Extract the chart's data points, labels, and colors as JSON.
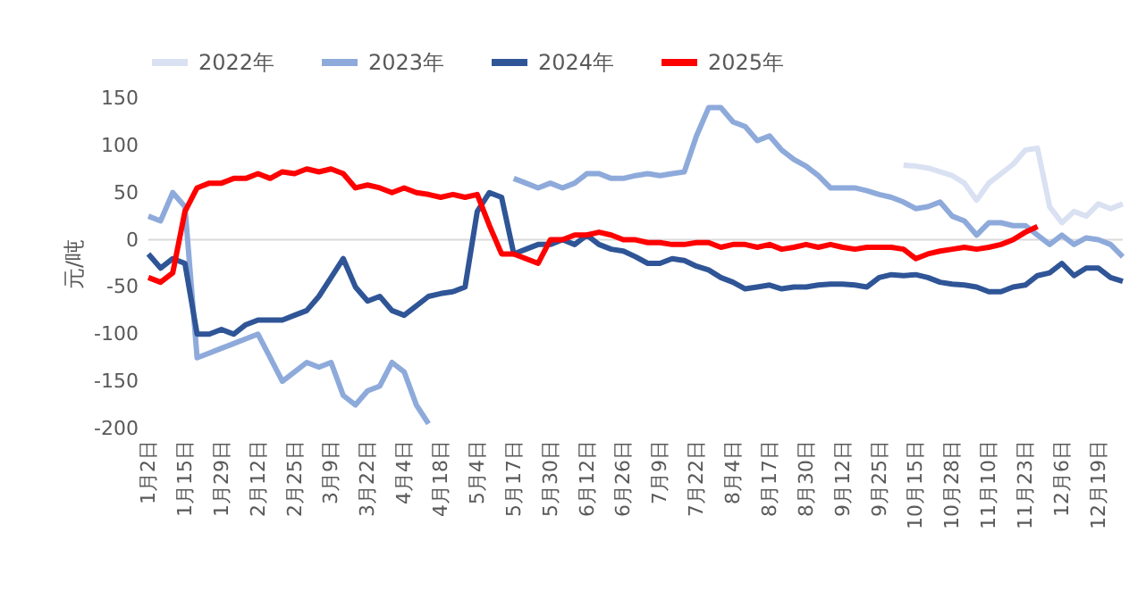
{
  "chart_data": {
    "type": "line",
    "ylabel": "元/吨",
    "categories": [
      "1月2日",
      null,
      null,
      "1月15日",
      null,
      null,
      "1月29日",
      null,
      null,
      "2月12日",
      null,
      null,
      "2月25日",
      null,
      null,
      "3月9日",
      null,
      null,
      "3月22日",
      null,
      null,
      "4月4日",
      null,
      null,
      "4月18日",
      null,
      null,
      "5月4日",
      null,
      null,
      "5月17日",
      null,
      null,
      "5月30日",
      null,
      null,
      "6月12日",
      null,
      null,
      "6月26日",
      null,
      null,
      "7月9日",
      null,
      null,
      "7月22日",
      null,
      null,
      "8月4日",
      null,
      null,
      "8月17日",
      null,
      null,
      "8月30日",
      null,
      null,
      "9月12日",
      null,
      null,
      "9月25日",
      null,
      null,
      "10月15日",
      null,
      null,
      "10月28日",
      null,
      null,
      "11月10日",
      null,
      null,
      "11月23日",
      null,
      null,
      "12月6日",
      null,
      null,
      "12月19日",
      null,
      null
    ],
    "ylim": [
      -200,
      150
    ],
    "yticks": [
      -200,
      -150,
      -100,
      -50,
      0,
      50,
      100,
      150
    ],
    "grid": false,
    "legend": "top",
    "ref_lines": [
      {
        "axis": "y",
        "value": 0,
        "color": "#d9d9d9"
      }
    ],
    "series": [
      {
        "name": "2022年",
        "color": "#d9e1f2",
        "values": [
          null,
          null,
          null,
          null,
          null,
          null,
          null,
          null,
          null,
          null,
          null,
          null,
          null,
          null,
          null,
          null,
          null,
          null,
          null,
          null,
          null,
          null,
          null,
          null,
          null,
          null,
          null,
          null,
          null,
          null,
          null,
          null,
          null,
          null,
          null,
          null,
          null,
          null,
          null,
          null,
          null,
          null,
          null,
          null,
          null,
          null,
          null,
          null,
          null,
          null,
          null,
          null,
          null,
          null,
          null,
          null,
          null,
          null,
          null,
          null,
          null,
          null,
          79,
          78,
          76,
          72,
          68,
          60,
          42,
          60,
          70,
          80,
          95,
          97,
          35,
          18,
          30,
          25,
          38,
          33,
          38
        ]
      },
      {
        "name": "2023年",
        "color": "#8eaadb",
        "values": [
          25,
          20,
          50,
          35,
          -125,
          -120,
          -115,
          -110,
          -105,
          -100,
          -125,
          -150,
          -140,
          -130,
          -135,
          -130,
          -165,
          -175,
          -160,
          -155,
          -130,
          -140,
          -175,
          -195,
          null,
          null,
          null,
          null,
          null,
          null,
          65,
          60,
          55,
          60,
          55,
          60,
          70,
          70,
          65,
          65,
          68,
          70,
          68,
          70,
          72,
          110,
          140,
          140,
          125,
          120,
          105,
          110,
          95,
          85,
          78,
          68,
          55,
          55,
          55,
          52,
          48,
          45,
          40,
          33,
          35,
          40,
          25,
          20,
          5,
          18,
          18,
          15,
          15,
          5,
          -5,
          5,
          -5,
          2,
          0,
          -5,
          -18
        ]
      },
      {
        "name": "2024年",
        "color": "#2f5597",
        "values": [
          -15,
          -30,
          -20,
          -25,
          -100,
          -100,
          -95,
          -100,
          -90,
          -85,
          -85,
          -85,
          -80,
          -75,
          -60,
          -40,
          -20,
          -50,
          -65,
          -60,
          -75,
          -80,
          -70,
          -60,
          -57,
          -55,
          -50,
          30,
          50,
          45,
          -15,
          -10,
          -5,
          -5,
          0,
          -5,
          5,
          -5,
          -10,
          -12,
          -18,
          -25,
          -25,
          -20,
          -22,
          -28,
          -32,
          -40,
          -45,
          -52,
          -50,
          -48,
          -52,
          -50,
          -50,
          -48,
          -47,
          -47,
          -48,
          -50,
          -40,
          -37,
          -38,
          -37,
          -40,
          -45,
          -47,
          -48,
          -50,
          -55,
          -55,
          -50,
          -48,
          -38,
          -35,
          -25,
          -38,
          -30,
          -30,
          -40,
          -44
        ]
      },
      {
        "name": "2025年",
        "color": "#ff0000",
        "values": [
          -40,
          -45,
          -35,
          30,
          55,
          60,
          60,
          65,
          65,
          70,
          65,
          72,
          70,
          75,
          72,
          75,
          70,
          55,
          58,
          55,
          50,
          55,
          50,
          48,
          45,
          48,
          45,
          48,
          15,
          -15,
          -15,
          -20,
          -25,
          0,
          0,
          5,
          5,
          8,
          5,
          0,
          0,
          -3,
          -3,
          -5,
          -5,
          -3,
          -3,
          -8,
          -5,
          -5,
          -8,
          -5,
          -10,
          -8,
          -5,
          -8,
          -5,
          -8,
          -10,
          -8,
          -8,
          -8,
          -10,
          -20,
          -15,
          -12,
          -10,
          -8,
          -10,
          -8,
          -5,
          0,
          8,
          14,
          null,
          null,
          null,
          null,
          null,
          null,
          null
        ]
      }
    ]
  }
}
